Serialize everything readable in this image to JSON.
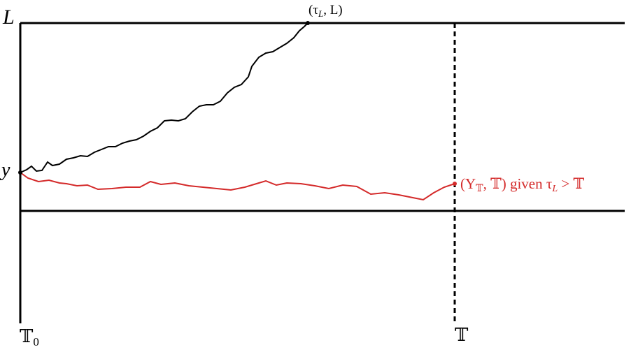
{
  "labels": {
    "level": "L",
    "start": "y",
    "hit_point": {
      "open": "(τ",
      "sub": "L",
      "close": ", L)"
    },
    "end_point": {
      "open": "(Y",
      "sub": "𝕋",
      "mid": ", 𝕋) given τ",
      "sub2": "L",
      "close": " > 𝕋"
    },
    "time_start": {
      "main": "𝕋",
      "sub": "0"
    },
    "time_end": "𝕋"
  }
}
